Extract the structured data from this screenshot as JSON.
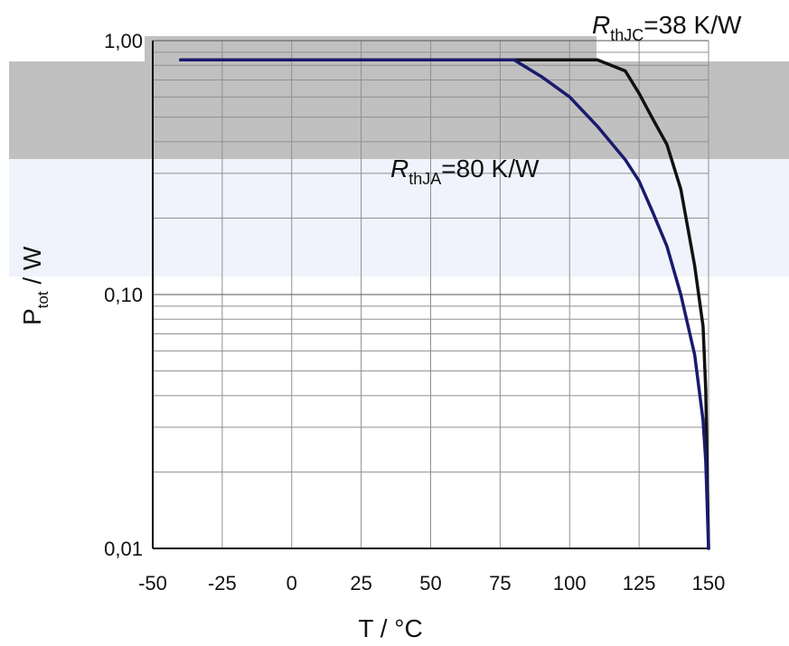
{
  "chart_data": {
    "type": "line",
    "x_scale": "linear",
    "y_scale": "log",
    "xlim": [
      -50,
      150
    ],
    "ylim": [
      0.01,
      1.0
    ],
    "x_ticks": [
      -50,
      -25,
      0,
      25,
      50,
      75,
      100,
      125,
      150
    ],
    "x_tick_labels": [
      "-50",
      "-25",
      "0",
      "25",
      "50",
      "75",
      "100",
      "125",
      "150"
    ],
    "y_ticks": [
      0.01,
      0.1,
      1.0
    ],
    "y_tick_labels": [
      "0,01",
      "0,10",
      "1,00"
    ],
    "grid": true,
    "xlabel": "T / °C",
    "ylabel": {
      "main": "P",
      "sub": "tot",
      "rest": " / W"
    },
    "annotations": [
      {
        "id": "rthjc",
        "symbol": "R",
        "sub": "thJC",
        "rest": "=38 K/W"
      },
      {
        "id": "rthja",
        "symbol": "R",
        "sub": "thJA",
        "rest": "=80 K/W"
      }
    ],
    "series": [
      {
        "id": "rthjc",
        "color": "#111111",
        "x": [
          -40,
          110,
          120,
          125,
          130,
          135,
          140,
          145,
          148,
          149,
          150
        ],
        "y": [
          0.84,
          0.84,
          0.76,
          0.62,
          0.49,
          0.39,
          0.26,
          0.13,
          0.075,
          0.042,
          0.01
        ]
      },
      {
        "id": "rthja",
        "color": "#1a1a6e",
        "x": [
          -40,
          80,
          90,
          100,
          110,
          120,
          125,
          130,
          135,
          140,
          145,
          148,
          149,
          150
        ],
        "y": [
          0.84,
          0.84,
          0.72,
          0.6,
          0.46,
          0.34,
          0.28,
          0.21,
          0.155,
          0.1,
          0.058,
          0.032,
          0.022,
          0.01
        ]
      }
    ]
  }
}
